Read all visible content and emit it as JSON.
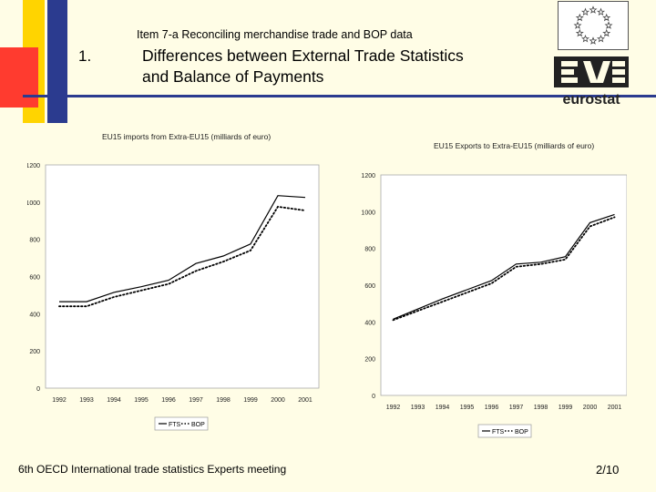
{
  "header": {
    "subtitle": "Item 7-a  Reconciling merchandise trade and BOP data",
    "section_number": "1.",
    "title_line1": "Differences between External Trade Statistics",
    "title_line2": "and Balance of Payments",
    "logo_text": "eurostat"
  },
  "footer": {
    "text": "6th OECD International trade statistics Experts meeting",
    "page": "2/10"
  },
  "colors": {
    "yellow": "#ffd400",
    "blue": "#2b3b8f",
    "red": "#ff3b2f",
    "background": "#fffde6"
  },
  "chart_data": [
    {
      "type": "line",
      "title": "EU15 imports from Extra-EU15 (milliards of euro)",
      "categories": [
        "1992",
        "1993",
        "1994",
        "1995",
        "1996",
        "1997",
        "1998",
        "1999",
        "2000",
        "2001"
      ],
      "series": [
        {
          "name": "FTS",
          "style": "solid",
          "values": [
            465,
            465,
            515,
            545,
            580,
            670,
            710,
            775,
            1035,
            1025
          ]
        },
        {
          "name": "BOP",
          "style": "dotted",
          "values": [
            440,
            440,
            490,
            525,
            560,
            630,
            680,
            740,
            975,
            955
          ]
        }
      ],
      "yticks": [
        0,
        200,
        400,
        600,
        800,
        1000,
        1200
      ],
      "ylim": [
        0,
        1200
      ],
      "legend": [
        "FTS",
        "BOP"
      ],
      "legend_position": "bottom",
      "grid": false
    },
    {
      "type": "line",
      "title": "EU15 Exports to Extra-EU15 (milliards of euro)",
      "categories": [
        "1992",
        "1993",
        "1994",
        "1995",
        "1996",
        "1997",
        "1998",
        "1999",
        "2000",
        "2001"
      ],
      "series": [
        {
          "name": "FTS",
          "style": "solid",
          "values": [
            415,
            470,
            525,
            575,
            625,
            715,
            725,
            755,
            940,
            985
          ]
        },
        {
          "name": "BOP",
          "style": "dotted",
          "values": [
            410,
            460,
            510,
            560,
            610,
            700,
            715,
            740,
            920,
            970
          ]
        }
      ],
      "yticks": [
        0,
        200,
        400,
        600,
        800,
        1000,
        1200
      ],
      "ylim": [
        0,
        1200
      ],
      "legend": [
        "FTS",
        "BOP"
      ],
      "legend_position": "bottom",
      "grid": false
    }
  ]
}
